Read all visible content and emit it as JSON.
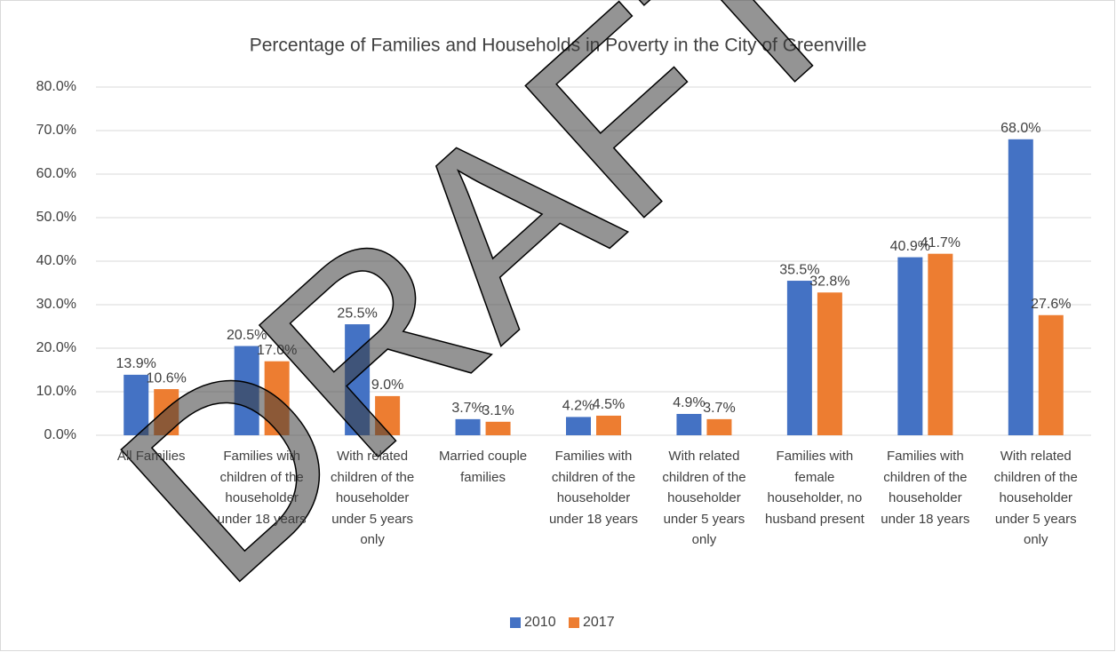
{
  "chart_data": {
    "type": "bar",
    "title": "Percentage of Families and Households in Poverty in the City of Greenville",
    "watermark": "DRAFT",
    "categories": [
      "All Families",
      "Families with children of the householder under 18 years",
      "With related children of the householder under 5 years only",
      "Married couple families",
      "Families with children of the householder under 18 years",
      "With related children of the householder under 5 years only",
      "Families with female householder, no husband present",
      "Families with children of the householder under 18 years",
      "With related children of the householder under 5 years only"
    ],
    "series": [
      {
        "name": "2010",
        "color": "#4472c4",
        "values": [
          13.9,
          20.5,
          25.5,
          3.7,
          4.2,
          4.9,
          35.5,
          40.9,
          68.0
        ],
        "value_labels": [
          "13.9%",
          "20.5%",
          "25.5%",
          "3.7%",
          "4.2%",
          "4.9%",
          "35.5%",
          "40.9%",
          "68.0%"
        ]
      },
      {
        "name": "2017",
        "color": "#ed7d31",
        "values": [
          10.6,
          17.0,
          9.0,
          3.1,
          4.5,
          3.7,
          32.8,
          41.7,
          27.6
        ],
        "value_labels": [
          "10.6%",
          "17.0%",
          "9.0%",
          "3.1%",
          "4.5%",
          "3.7%",
          "32.8%",
          "41.7%",
          "27.6%"
        ]
      }
    ],
    "ylim": [
      0,
      80
    ],
    "yticks": [
      {
        "value": 0,
        "label": "0.0%"
      },
      {
        "value": 10,
        "label": "10.0%"
      },
      {
        "value": 20,
        "label": "20.0%"
      },
      {
        "value": 30,
        "label": "30.0%"
      },
      {
        "value": 40,
        "label": "40.0%"
      },
      {
        "value": 50,
        "label": "50.0%"
      },
      {
        "value": 60,
        "label": "60.0%"
      },
      {
        "value": 70,
        "label": "70.0%"
      },
      {
        "value": 80,
        "label": "80.0%"
      }
    ],
    "grid": true,
    "legend": "bottom"
  }
}
